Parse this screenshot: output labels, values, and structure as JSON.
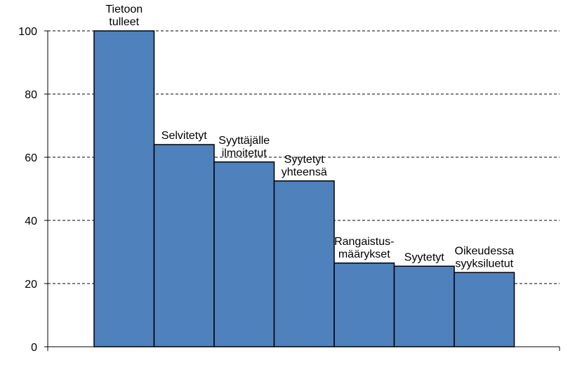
{
  "chart_data": {
    "type": "bar",
    "categories": [
      [
        "Tietoon",
        "tulleet"
      ],
      [
        "Selvitetyt"
      ],
      [
        "Syyttäjälle",
        "ilmoitetut"
      ],
      [
        "Syytetyt",
        "yhteensä"
      ],
      [
        "Rangaistus-",
        "määrykset"
      ],
      [
        "Syytetyt"
      ],
      [
        "Oikeudessa",
        "syyksiluetut"
      ]
    ],
    "values": [
      100,
      64,
      58.5,
      52.5,
      26.5,
      25.5,
      23.5
    ],
    "yticks": [
      "0",
      "20",
      "40",
      "60",
      "80",
      "100"
    ],
    "ylim": [
      0,
      100
    ],
    "grid": true,
    "colors": {
      "bar": "#4F81BD",
      "border": "#000000",
      "grid": "#000000"
    }
  }
}
